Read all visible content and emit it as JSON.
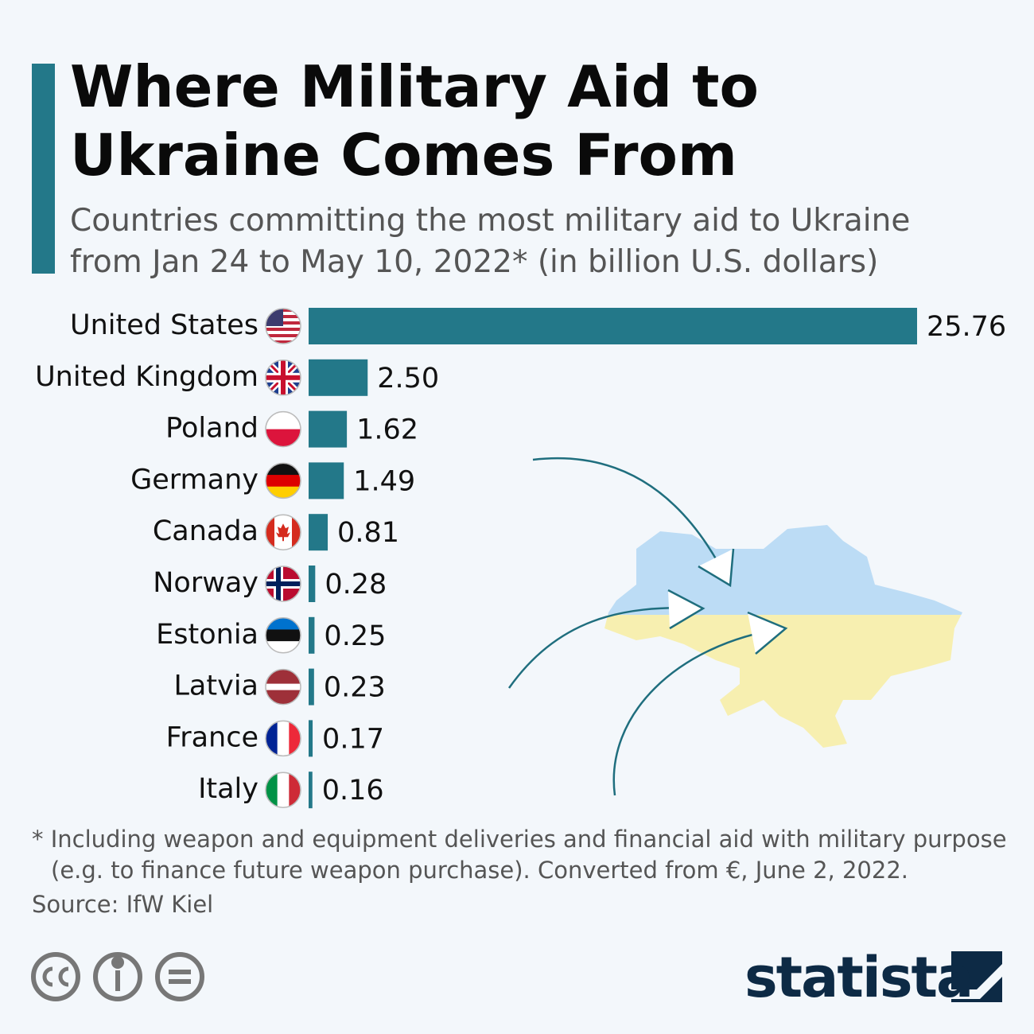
{
  "chart_data": {
    "type": "hbar",
    "title": "Where Military Aid to Ukraine Comes From",
    "subtitle": "Countries committing the most military aid to Ukraine from Jan 24 to May 10, 2022* (in billion U.S. dollars)",
    "categories": [
      "United States",
      "United Kingdom",
      "Poland",
      "Germany",
      "Canada",
      "Norway",
      "Estonia",
      "Latvia",
      "France",
      "Italy"
    ],
    "values": [
      25.76,
      2.5,
      1.62,
      1.49,
      0.81,
      0.28,
      0.25,
      0.23,
      0.17,
      0.16
    ],
    "value_labels": [
      "25.76",
      "2.50",
      "1.62",
      "1.49",
      "0.81",
      "0.28",
      "0.25",
      "0.23",
      "0.17",
      "0.16"
    ],
    "color": "#237889",
    "note": "* Including weapon and equipment deliveries and financial aid with military purpose (e.g. to finance future weapon purchase). Converted from €, June 2, 2022.",
    "source": "Source: IfW Kiel",
    "logo": "statista"
  }
}
